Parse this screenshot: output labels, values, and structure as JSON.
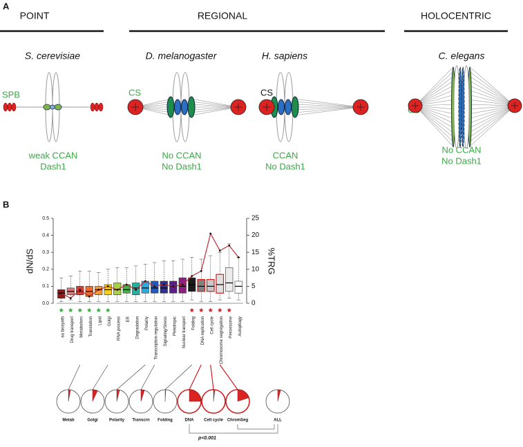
{
  "panel_a": {
    "label": "A",
    "groups": [
      "POINT",
      "REGIONAL",
      "HOLOCENTRIC"
    ],
    "species": [
      {
        "name": "S. cerevisiae",
        "pole": "SPB",
        "notes": [
          "weak CCAN",
          "Dash1"
        ]
      },
      {
        "name": "D. melanogaster",
        "pole": "CS",
        "notes": [
          "No CCAN",
          "No Dash1"
        ]
      },
      {
        "name": "H. sapiens",
        "pole": "CS",
        "notes": [
          "CCAN",
          "No Dash1"
        ]
      },
      {
        "name": "C. elegans",
        "pole": "CS",
        "notes": [
          "No CCAN",
          "No Dash1"
        ]
      }
    ]
  },
  "chart_data": {
    "type": "box",
    "panel_label": "B",
    "y_label": "dN/dS",
    "y2_label": "%TRG",
    "annotation": "p<0.001",
    "categories": [
      "aa biosynth",
      "Drug transport",
      "Metabolism",
      "Translation",
      "Lipid",
      "Golgi",
      "RNA process",
      "ER",
      "Degradation",
      "Polarity",
      "Transcription regulation",
      "Signaling/Stress",
      "Pleiotropic",
      "Nuclear transport",
      "Folding",
      "DNA replication",
      "Cell cycle",
      "Chromosome segregation",
      "Peroxisome",
      "Autophagy"
    ],
    "boxes": [
      {
        "whisker_low": 0.01,
        "q1": 0.03,
        "median": 0.06,
        "q3": 0.08,
        "whisker_high": 0.15
      },
      {
        "whisker_low": 0.02,
        "q1": 0.05,
        "median": 0.07,
        "q3": 0.09,
        "whisker_high": 0.16
      },
      {
        "whisker_low": 0.01,
        "q1": 0.05,
        "median": 0.07,
        "q3": 0.1,
        "whisker_high": 0.19
      },
      {
        "whisker_low": 0.01,
        "q1": 0.04,
        "median": 0.07,
        "q3": 0.1,
        "whisker_high": 0.19
      },
      {
        "whisker_low": 0.01,
        "q1": 0.05,
        "median": 0.08,
        "q3": 0.1,
        "whisker_high": 0.18
      },
      {
        "whisker_low": 0.01,
        "q1": 0.05,
        "median": 0.08,
        "q3": 0.11,
        "whisker_high": 0.2
      },
      {
        "whisker_low": 0.01,
        "q1": 0.05,
        "median": 0.08,
        "q3": 0.12,
        "whisker_high": 0.21
      },
      {
        "whisker_low": 0.01,
        "q1": 0.06,
        "median": 0.08,
        "q3": 0.11,
        "whisker_high": 0.21
      },
      {
        "whisker_low": 0.01,
        "q1": 0.05,
        "median": 0.09,
        "q3": 0.12,
        "whisker_high": 0.22
      },
      {
        "whisker_low": 0.01,
        "q1": 0.06,
        "median": 0.09,
        "q3": 0.13,
        "whisker_high": 0.23
      },
      {
        "whisker_low": 0.01,
        "q1": 0.06,
        "median": 0.09,
        "q3": 0.13,
        "whisker_high": 0.24
      },
      {
        "whisker_low": 0.01,
        "q1": 0.06,
        "median": 0.09,
        "q3": 0.13,
        "whisker_high": 0.25
      },
      {
        "whisker_low": 0.01,
        "q1": 0.06,
        "median": 0.1,
        "q3": 0.13,
        "whisker_high": 0.25
      },
      {
        "whisker_low": 0.01,
        "q1": 0.06,
        "median": 0.1,
        "q3": 0.15,
        "whisker_high": 0.26
      },
      {
        "whisker_low": 0.02,
        "q1": 0.07,
        "median": 0.11,
        "q3": 0.15,
        "whisker_high": 0.27
      },
      {
        "whisker_low": 0.01,
        "q1": 0.07,
        "median": 0.1,
        "q3": 0.14,
        "whisker_high": 0.26
      },
      {
        "whisker_low": 0.01,
        "q1": 0.07,
        "median": 0.1,
        "q3": 0.14,
        "whisker_high": 0.28
      },
      {
        "whisker_low": 0.02,
        "q1": 0.06,
        "median": 0.11,
        "q3": 0.17,
        "whisker_high": 0.3
      },
      {
        "whisker_low": 0.03,
        "q1": 0.07,
        "median": 0.12,
        "q3": 0.21,
        "whisker_high": 0.35
      },
      {
        "whisker_low": 0.02,
        "q1": 0.06,
        "median": 0.1,
        "q3": 0.13,
        "whisker_high": 0.27
      }
    ],
    "box_colors": [
      "#8b1a1a",
      "#d87878",
      "#e03a30",
      "#f06a2a",
      "#f59a35",
      "#f5d020",
      "#a8d048",
      "#48b048",
      "#28b0a0",
      "#30a8e0",
      "#2058c0",
      "#303090",
      "#5a2088",
      "#8a2080",
      "#1a1a1a",
      "#808080",
      "#c8c8c8",
      "#e0e0e0",
      "#ececec",
      "#ffffff"
    ],
    "edge_colors": [
      "#333333",
      "#333333",
      "#333333",
      "#333333",
      "#333333",
      "#333333",
      "#333333",
      "#333333",
      "#333333",
      "#333333",
      "#333333",
      "#333333",
      "#333333",
      "#333333",
      "#333333",
      "#d02020",
      "#d02020",
      "#d02020",
      "#333333",
      "#333333"
    ],
    "star_colors": [
      "#3aa845",
      "#3aa845",
      "#3aa845",
      "#3aa845",
      "#3aa845",
      "#3aa845",
      null,
      null,
      null,
      null,
      null,
      null,
      null,
      null,
      "#c0282e",
      "#c0282e",
      "#c0282e",
      "#c0282e",
      "#c0282e",
      null
    ],
    "series": [
      {
        "color": "#c0282e",
        "axis": "y2",
        "values": [
          3,
          1.5,
          4,
          2,
          4,
          5,
          4,
          5.5,
          4,
          6.5,
          5,
          5.5,
          5,
          5.5,
          8,
          9.5,
          20.5,
          15.5,
          17,
          13.5
        ]
      }
    ],
    "ylim": [
      0,
      0.5
    ],
    "yticks": [
      {
        "value": 0,
        "label": "0.0"
      },
      0.1,
      0.2,
      0.3,
      0.4,
      0.5
    ],
    "y2lim": [
      0,
      25
    ],
    "y2ticks": [
      0,
      5,
      10,
      15,
      20,
      25
    ],
    "pies": {
      "labels": [
        "Metab",
        "Golgi",
        "Polarity",
        "Transcrn",
        "Folding",
        "DNA",
        "Cell cycle",
        "ChromSeg",
        "ALL"
      ],
      "values": [
        3,
        7,
        4,
        5,
        1,
        25,
        2,
        20,
        4
      ],
      "color": "#dd2222",
      "edge_colors": [
        "#333333",
        "#333333",
        "#333333",
        "#333333",
        "#333333",
        "#d02020",
        "#d02020",
        "#d02020",
        "#333333"
      ]
    }
  }
}
